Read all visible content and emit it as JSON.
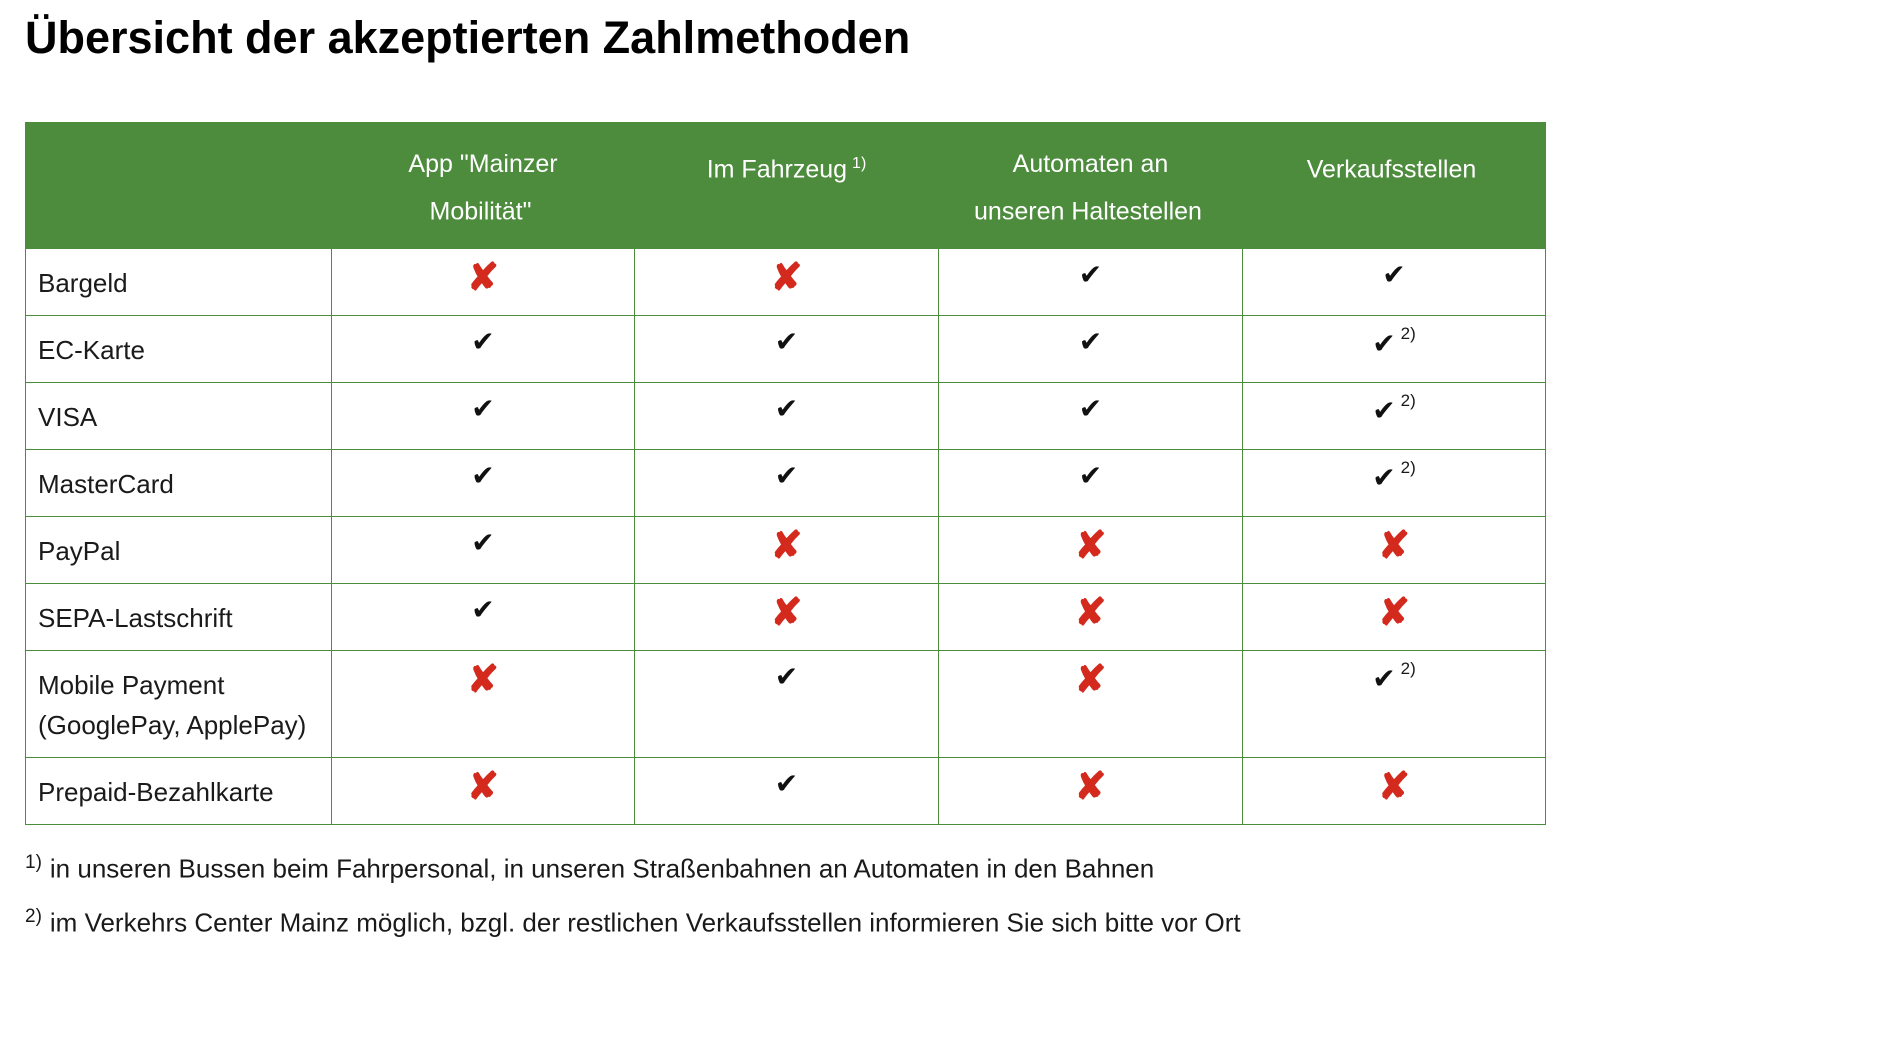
{
  "title": "Übersicht der akzeptierten Zahlmethoden",
  "colors": {
    "header_green": "#4d8b3d",
    "cross_red": "#d32a1d",
    "check_black": "#111111"
  },
  "table": {
    "glyphs": {
      "check": "✔",
      "cross": "✘"
    },
    "headers": [
      {
        "label": "",
        "sup": ""
      },
      {
        "label": "App \"Mainzer Mobilität\"",
        "sup": ""
      },
      {
        "label": "Im Fahrzeug",
        "sup": "1)"
      },
      {
        "label": "Automaten an unseren Haltestellen",
        "sup": ""
      },
      {
        "label": "Verkaufsstellen",
        "sup": ""
      }
    ],
    "rows": [
      {
        "label": "Bargeld",
        "cells": [
          {
            "type": "cross"
          },
          {
            "type": "cross"
          },
          {
            "type": "check"
          },
          {
            "type": "check"
          }
        ]
      },
      {
        "label": "EC-Karte",
        "cells": [
          {
            "type": "check"
          },
          {
            "type": "check"
          },
          {
            "type": "check"
          },
          {
            "type": "check",
            "sup": "2)"
          }
        ]
      },
      {
        "label": "VISA",
        "cells": [
          {
            "type": "check"
          },
          {
            "type": "check"
          },
          {
            "type": "check"
          },
          {
            "type": "check",
            "sup": "2)"
          }
        ]
      },
      {
        "label": "MasterCard",
        "cells": [
          {
            "type": "check"
          },
          {
            "type": "check"
          },
          {
            "type": "check"
          },
          {
            "type": "check",
            "sup": "2)"
          }
        ]
      },
      {
        "label": "PayPal",
        "cells": [
          {
            "type": "check"
          },
          {
            "type": "cross"
          },
          {
            "type": "cross"
          },
          {
            "type": "cross"
          }
        ]
      },
      {
        "label": "SEPA-Lastschrift",
        "cells": [
          {
            "type": "check"
          },
          {
            "type": "cross"
          },
          {
            "type": "cross"
          },
          {
            "type": "cross"
          }
        ]
      },
      {
        "label": "Mobile Payment (GooglePay, ApplePay)",
        "cells": [
          {
            "type": "cross"
          },
          {
            "type": "check"
          },
          {
            "type": "cross"
          },
          {
            "type": "check",
            "sup": "2)"
          }
        ]
      },
      {
        "label": "Prepaid-Bezahlkarte",
        "cells": [
          {
            "type": "cross"
          },
          {
            "type": "check"
          },
          {
            "type": "cross"
          },
          {
            "type": "cross"
          }
        ]
      }
    ]
  },
  "footnotes": [
    {
      "marker": "1)",
      "text": "in unseren Bussen beim Fahrpersonal, in unseren Straßenbahnen an Automaten in den Bahnen"
    },
    {
      "marker": "2)",
      "text": "im Verkehrs Center Mainz möglich, bzgl. der restlichen Verkaufsstellen informieren Sie sich bitte vor Ort"
    }
  ]
}
